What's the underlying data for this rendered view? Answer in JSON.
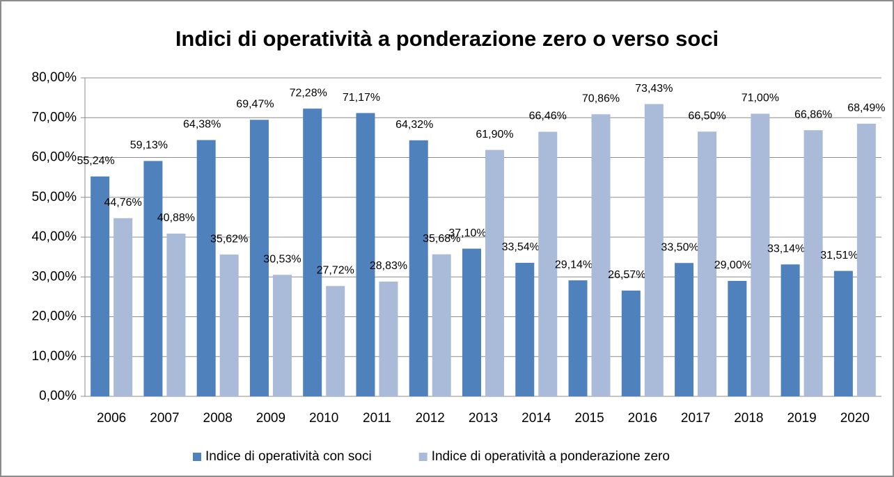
{
  "chart_data": {
    "type": "bar",
    "title": "Indici di operatività a ponderazione zero o verso soci",
    "categories": [
      "2006",
      "2007",
      "2008",
      "2009",
      "2010",
      "2011",
      "2012",
      "2013",
      "2014",
      "2015",
      "2016",
      "2017",
      "2018",
      "2019",
      "2020"
    ],
    "series": [
      {
        "name": "Indice di operatività con soci",
        "color": "#4f81bd",
        "values": [
          55.24,
          59.13,
          64.38,
          69.47,
          72.28,
          71.17,
          64.32,
          37.1,
          33.54,
          29.14,
          26.57,
          33.5,
          29.0,
          33.14,
          31.51
        ],
        "value_labels": [
          "55,24%",
          "59,13%",
          "64,38%",
          "69,47%",
          "72,28%",
          "71,17%",
          "64,32%",
          "37,10%",
          "33,54%",
          "29,14%",
          "26,57%",
          "33,50%",
          "29,00%",
          "33,14%",
          "31,51%"
        ]
      },
      {
        "name": "Indice di operatività a ponderazione zero",
        "color": "#a9bbd9",
        "values": [
          44.76,
          40.88,
          35.62,
          30.53,
          27.72,
          28.83,
          35.68,
          61.9,
          66.46,
          70.86,
          73.43,
          66.5,
          71.0,
          66.86,
          68.49
        ],
        "value_labels": [
          "44,76%",
          "40,88%",
          "35,62%",
          "30,53%",
          "27,72%",
          "28,83%",
          "35,68%",
          "61,90%",
          "66,46%",
          "70,86%",
          "73,43%",
          "66,50%",
          "71,00%",
          "66,86%",
          "68,49%"
        ]
      }
    ],
    "ylim": [
      0,
      80
    ],
    "yticks": [
      {
        "value": 0,
        "label": "0,00%"
      },
      {
        "value": 10,
        "label": "10,00%"
      },
      {
        "value": 20,
        "label": "20,00%"
      },
      {
        "value": 30,
        "label": "30,00%"
      },
      {
        "value": 40,
        "label": "40,00%"
      },
      {
        "value": 50,
        "label": "50,00%"
      },
      {
        "value": 60,
        "label": "60,00%"
      },
      {
        "value": 70,
        "label": "70,00%"
      },
      {
        "value": 80,
        "label": "80,00%"
      }
    ],
    "grid": true,
    "legend": "bottom"
  }
}
